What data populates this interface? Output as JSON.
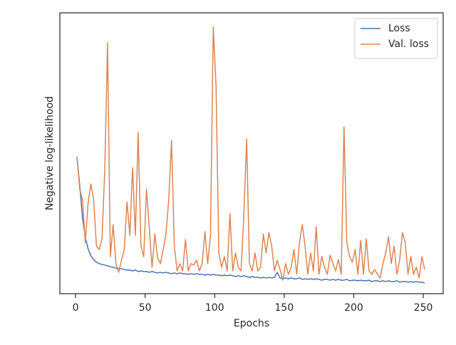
{
  "chart_data": {
    "type": "line",
    "x_label": "Epochs",
    "y_label": "Negative log-likelihood",
    "x": [
      1,
      3,
      5,
      7,
      9,
      11,
      13,
      15,
      17,
      19,
      21,
      23,
      25,
      27,
      29,
      31,
      33,
      35,
      37,
      39,
      41,
      43,
      45,
      47,
      49,
      51,
      53,
      55,
      57,
      59,
      61,
      63,
      65,
      67,
      69,
      71,
      73,
      75,
      77,
      79,
      81,
      83,
      85,
      87,
      89,
      91,
      93,
      95,
      97,
      99,
      101,
      103,
      105,
      107,
      109,
      111,
      113,
      115,
      117,
      119,
      121,
      123,
      125,
      127,
      129,
      131,
      133,
      135,
      137,
      139,
      141,
      143,
      145,
      147,
      149,
      151,
      153,
      155,
      157,
      159,
      161,
      163,
      165,
      167,
      169,
      171,
      173,
      175,
      177,
      179,
      181,
      183,
      185,
      187,
      189,
      191,
      193,
      195,
      197,
      199,
      201,
      203,
      205,
      207,
      209,
      211,
      213,
      215,
      217,
      219,
      221,
      223,
      225,
      227,
      229,
      231,
      233,
      235,
      237,
      239,
      241,
      243,
      245,
      247,
      249,
      251
    ],
    "series": [
      {
        "name": "Loss",
        "color": "#4c72b0",
        "values": [
          48.7,
          38.6,
          27.0,
          20.0,
          16.0,
          13.5,
          12.2,
          11.2,
          10.7,
          10.4,
          10.2,
          9.9,
          9.6,
          9.4,
          9.1,
          8.9,
          8.9,
          8.6,
          8.4,
          8.4,
          8.1,
          8.4,
          7.9,
          8.1,
          7.9,
          7.9,
          7.6,
          7.9,
          7.6,
          7.4,
          7.6,
          7.4,
          7.6,
          7.4,
          7.1,
          7.4,
          7.1,
          7.4,
          7.1,
          7.1,
          6.9,
          7.1,
          6.9,
          7.1,
          6.9,
          6.9,
          6.6,
          6.9,
          6.6,
          6.9,
          6.6,
          6.6,
          6.4,
          6.6,
          6.4,
          6.6,
          6.4,
          6.1,
          6.4,
          6.1,
          6.4,
          6.1,
          5.8,
          6.1,
          5.8,
          5.8,
          5.6,
          5.8,
          5.6,
          5.8,
          5.6,
          5.8,
          7.6,
          5.6,
          5.3,
          5.6,
          5.3,
          5.6,
          5.3,
          5.3,
          5.6,
          5.1,
          5.3,
          5.1,
          5.3,
          5.1,
          5.3,
          5.1,
          4.8,
          5.1,
          5.1,
          4.8,
          5.1,
          4.8,
          5.1,
          4.8,
          4.8,
          5.1,
          4.6,
          4.8,
          4.8,
          4.6,
          4.8,
          4.6,
          4.6,
          4.8,
          4.3,
          4.6,
          4.6,
          4.3,
          4.6,
          4.3,
          4.6,
          4.3,
          4.3,
          4.6,
          4.1,
          4.3,
          4.3,
          4.1,
          4.3,
          4.1,
          4.3,
          4.1,
          4.1,
          3.8
        ]
      },
      {
        "name": "Val. loss",
        "color": "#dd8452",
        "values": [
          48.7,
          37.3,
          33.5,
          18.3,
          32.2,
          39.1,
          33.5,
          17.0,
          15.7,
          19.5,
          44.2,
          89.3,
          13.2,
          24.6,
          10.7,
          7.6,
          11.9,
          15.7,
          32.7,
          20.8,
          44.9,
          20.8,
          57.4,
          17.0,
          13.2,
          37.3,
          23.4,
          9.4,
          21.3,
          12.7,
          10.7,
          15.7,
          21.3,
          33.5,
          54.6,
          17.0,
          8.1,
          10.7,
          8.1,
          19.3,
          8.1,
          10.7,
          10.2,
          11.9,
          8.1,
          10.7,
          22.1,
          10.7,
          20.8,
          94.9,
          74.1,
          14.5,
          9.4,
          13.2,
          8.1,
          28.4,
          8.1,
          14.5,
          9.4,
          8.1,
          28.4,
          55.1,
          10.7,
          8.1,
          14.5,
          8.1,
          9.4,
          21.3,
          14.5,
          21.8,
          17.0,
          8.1,
          11.9,
          8.6,
          4.8,
          10.7,
          6.9,
          9.4,
          15.7,
          6.9,
          18.3,
          24.6,
          17.0,
          6.9,
          14.5,
          8.1,
          23.9,
          6.9,
          13.2,
          9.4,
          6.9,
          13.7,
          10.7,
          8.1,
          12.2,
          6.9,
          59.4,
          18.3,
          13.2,
          11.2,
          15.7,
          6.9,
          19.0,
          6.9,
          19.5,
          8.1,
          6.9,
          8.6,
          6.9,
          5.6,
          10.7,
          14.5,
          20.3,
          10.7,
          17.0,
          6.9,
          11.9,
          21.8,
          18.3,
          6.9,
          13.2,
          6.9,
          9.4,
          5.6,
          13.2,
          8.6
        ]
      }
    ],
    "xlim": [
      -11.3,
      264.3
    ],
    "xticks": [
      0,
      50,
      100,
      150,
      200,
      250
    ],
    "ylim": [
      0,
      100
    ],
    "legend": "upper right"
  }
}
